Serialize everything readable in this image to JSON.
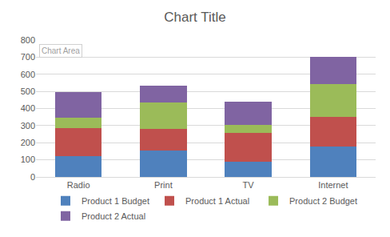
{
  "chart_data": {
    "type": "bar",
    "title": "Chart Title",
    "categories": [
      "Radio",
      "Print",
      "TV",
      "Internet"
    ],
    "series": [
      {
        "name": "Product 1 Budget",
        "color": "#4f81bd",
        "values": [
          120,
          155,
          90,
          180
        ]
      },
      {
        "name": "Product 1 Actual",
        "color": "#c0504d",
        "values": [
          165,
          125,
          165,
          170
        ]
      },
      {
        "name": "Product 2 Budget",
        "color": "#9bbb59",
        "values": [
          60,
          155,
          50,
          195
        ]
      },
      {
        "name": "Product 2 Actual",
        "color": "#8064a2",
        "values": [
          150,
          100,
          135,
          155
        ]
      }
    ],
    "stacked": true,
    "ylim": [
      0,
      800
    ],
    "yticks": [
      0,
      100,
      200,
      300,
      400,
      500,
      600,
      700,
      800
    ],
    "grid": true,
    "legend": "bottom",
    "annotations": [
      "Chart Area"
    ]
  }
}
